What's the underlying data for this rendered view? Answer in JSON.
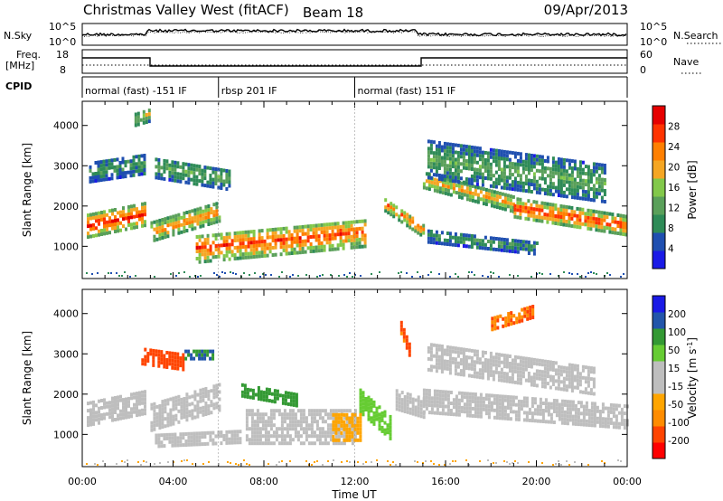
{
  "header": {
    "title": "Christmas Valley West (fitACF)",
    "beam": "Beam 18",
    "date": "09/Apr/2013"
  },
  "strip_panels": {
    "nsky": {
      "left_label": "N.Sky",
      "right_label": "N.Search",
      "yticks_left": [
        "10^5",
        "10^0"
      ],
      "yticks_right": [
        "10^5",
        "10^0"
      ]
    },
    "freq": {
      "left_label_line1": "Freq.",
      "left_label_line2": "[MHz]",
      "right_label": "Nave",
      "yticks_left": [
        "18",
        "8"
      ],
      "yticks_right": [
        "60",
        "0"
      ]
    },
    "cpid": {
      "label": "CPID"
    }
  },
  "cpid_segments": [
    {
      "start_hour": 0.0,
      "end_hour": 6.0,
      "label": "normal (fast) -151 IF"
    },
    {
      "start_hour": 6.0,
      "end_hour": 12.0,
      "label": "rbsp 201 IF"
    },
    {
      "start_hour": 12.0,
      "end_hour": 24.0,
      "label": "normal (fast) 151 IF"
    }
  ],
  "colors": {
    "power_scale": [
      "#1a1ae6",
      "#1f4fb0",
      "#2e8b57",
      "#5aa05a",
      "#82c84a",
      "#f5a623",
      "#ff7f00",
      "#ff3300",
      "#e60000"
    ],
    "velocity_scale": [
      "#ff0000",
      "#ff4400",
      "#ff8c00",
      "#ffa500",
      "#bebebe",
      "#bebebe",
      "#66cc33",
      "#339933",
      "#2255aa",
      "#1a1ae6"
    ]
  },
  "chart_data": [
    {
      "type": "heatmap",
      "name_on_chart": "Power",
      "xlabel": "",
      "ylabel": "Slant Range [km]",
      "x_range_hours": [
        0,
        24
      ],
      "y_range_km": [
        200,
        4600
      ],
      "yticks": [
        1000,
        2000,
        3000,
        4000
      ],
      "colorbar": {
        "label": "Power [dB]",
        "ticks": [
          "4",
          "8",
          "12",
          "16",
          "20",
          "24",
          "28"
        ],
        "range": [
          0,
          30
        ]
      },
      "bands": [
        {
          "x0": 0.2,
          "x1": 2.8,
          "y_center_start": 1550,
          "y_center_end": 1850,
          "thickness": 550,
          "value": 27
        },
        {
          "x0": 3.0,
          "x1": 6.0,
          "y_center_start": 1400,
          "y_center_end": 1900,
          "thickness": 450,
          "value": 22
        },
        {
          "x0": 5.0,
          "x1": 12.5,
          "y_center_start": 1000,
          "y_center_end": 1400,
          "thickness": 700,
          "value": 25
        },
        {
          "x0": 13.3,
          "x1": 15.0,
          "y_center_start": 2100,
          "y_center_end": 1450,
          "thickness": 350,
          "value": 22
        },
        {
          "x0": 15.0,
          "x1": 19.0,
          "y_center_start": 2700,
          "y_center_end": 2100,
          "thickness": 400,
          "value": 20
        },
        {
          "x0": 19.0,
          "x1": 24.0,
          "y_center_start": 2000,
          "y_center_end": 1550,
          "thickness": 450,
          "value": 26
        },
        {
          "x0": 0.3,
          "x1": 2.7,
          "y_center_start": 2900,
          "y_center_end": 3100,
          "thickness": 500,
          "value": 10
        },
        {
          "x0": 3.2,
          "x1": 6.5,
          "y_center_start": 3000,
          "y_center_end": 2700,
          "thickness": 500,
          "value": 12
        },
        {
          "x0": 15.2,
          "x1": 23.0,
          "y_center_start": 3200,
          "y_center_end": 2600,
          "thickness": 900,
          "value": 12
        },
        {
          "x0": 15.2,
          "x1": 20.0,
          "y_center_start": 1300,
          "y_center_end": 1000,
          "thickness": 300,
          "value": 10
        },
        {
          "x0": 2.3,
          "x1": 2.9,
          "y_center_start": 4200,
          "y_center_end": 4300,
          "thickness": 300,
          "value": 17
        }
      ]
    },
    {
      "type": "heatmap",
      "name_on_chart": "Velocity",
      "xlabel": "Time UT",
      "ylabel": "Slant Range [km]",
      "x_range_hours": [
        0,
        24
      ],
      "xticks": [
        "00:00",
        "04:00",
        "08:00",
        "12:00",
        "16:00",
        "20:00",
        "00:00"
      ],
      "y_range_km": [
        200,
        4600
      ],
      "yticks": [
        1000,
        2000,
        3000,
        4000
      ],
      "colorbar": {
        "label": "Velocity [m s^-1]",
        "ticks": [
          "-200",
          "-100",
          "-50",
          "-15",
          "15",
          "50",
          "100",
          "200"
        ],
        "range": [
          -250,
          250
        ]
      },
      "bands": [
        {
          "x0": 0.2,
          "x1": 2.8,
          "y_center_start": 1550,
          "y_center_end": 1850,
          "thickness": 550,
          "value": 0
        },
        {
          "x0": 3.0,
          "x1": 6.0,
          "y_center_start": 1500,
          "y_center_end": 2000,
          "thickness": 700,
          "value": 0
        },
        {
          "x0": 3.2,
          "x1": 7.0,
          "y_center_start": 900,
          "y_center_end": 1000,
          "thickness": 300,
          "value": 0
        },
        {
          "x0": 7.2,
          "x1": 12.0,
          "y_center_start": 1250,
          "y_center_end": 1250,
          "thickness": 850,
          "value": -40
        },
        {
          "x0": 12.2,
          "x1": 13.6,
          "y_center_start": 1900,
          "y_center_end": 1200,
          "thickness": 600,
          "value": 60
        },
        {
          "x0": 13.8,
          "x1": 15.0,
          "y_center_start": 1900,
          "y_center_end": 1700,
          "thickness": 450,
          "value": 0
        },
        {
          "x0": 15.0,
          "x1": 24.0,
          "y_center_start": 1900,
          "y_center_end": 1500,
          "thickness": 600,
          "value": 0
        },
        {
          "x0": 15.2,
          "x1": 22.5,
          "y_center_start": 3000,
          "y_center_end": 2400,
          "thickness": 700,
          "value": 0
        },
        {
          "x0": 2.6,
          "x1": 4.5,
          "y_center_start": 3000,
          "y_center_end": 2850,
          "thickness": 400,
          "value": -180
        },
        {
          "x0": 4.5,
          "x1": 5.8,
          "y_center_start": 3050,
          "y_center_end": 3050,
          "thickness": 250,
          "value": 150
        },
        {
          "x0": 7.0,
          "x1": 9.5,
          "y_center_start": 2150,
          "y_center_end": 1900,
          "thickness": 300,
          "value": 140
        },
        {
          "x0": 11.0,
          "x1": 12.2,
          "y_center_start": 1250,
          "y_center_end": 1250,
          "thickness": 700,
          "value": -80
        },
        {
          "x0": 14.0,
          "x1": 14.4,
          "y_center_start": 3700,
          "y_center_end": 3100,
          "thickness": 300,
          "value": -150
        },
        {
          "x0": 18.0,
          "x1": 19.8,
          "y_center_start": 3800,
          "y_center_end": 4100,
          "thickness": 300,
          "value": -150
        }
      ]
    }
  ]
}
